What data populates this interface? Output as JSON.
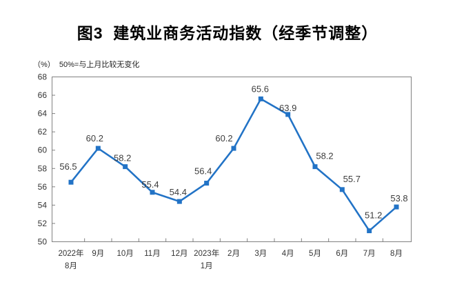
{
  "title": "图3  建筑业商务活动指数（经季节调整）",
  "subtitle": "（%）  50%=与上月比较无变化",
  "chart_data": {
    "type": "line",
    "title": "图3 建筑业商务活动指数（经季节调整）",
    "subtitle_note": "（%）50%=与上月比较无变化",
    "categories": [
      "2022年\n8月",
      "9月",
      "10月",
      "11月",
      "12月",
      "2023年\n1月",
      "2月",
      "3月",
      "4月",
      "5月",
      "6月",
      "7月",
      "8月"
    ],
    "values": [
      56.5,
      60.2,
      58.2,
      55.4,
      54.4,
      56.4,
      60.2,
      65.6,
      63.9,
      58.2,
      55.7,
      51.2,
      53.8
    ],
    "value_labels": [
      "56.5",
      "60.2",
      "58.2",
      "55.4",
      "54.4",
      "56.4",
      "60.2",
      "65.6",
      "63.9",
      "58.2",
      "55.7",
      "51.2",
      "53.8"
    ],
    "ylim": [
      50,
      68
    ],
    "ytick_step": 2,
    "grid": false,
    "legend": false,
    "marker": "square",
    "line_color": "#2273C6",
    "axis_color": "#808080",
    "label_color": "#3d3d3d",
    "label_offsets": {
      "dx": [
        -4,
        -5,
        -4,
        -3,
        -2,
        -5,
        -14,
        -1,
        0,
        14,
        14,
        6,
        4
      ],
      "dy": [
        -18,
        -10,
        -8,
        -7,
        -9,
        -13,
        -10,
        -10,
        -5,
        -11,
        -11,
        -18,
        -8
      ]
    }
  }
}
